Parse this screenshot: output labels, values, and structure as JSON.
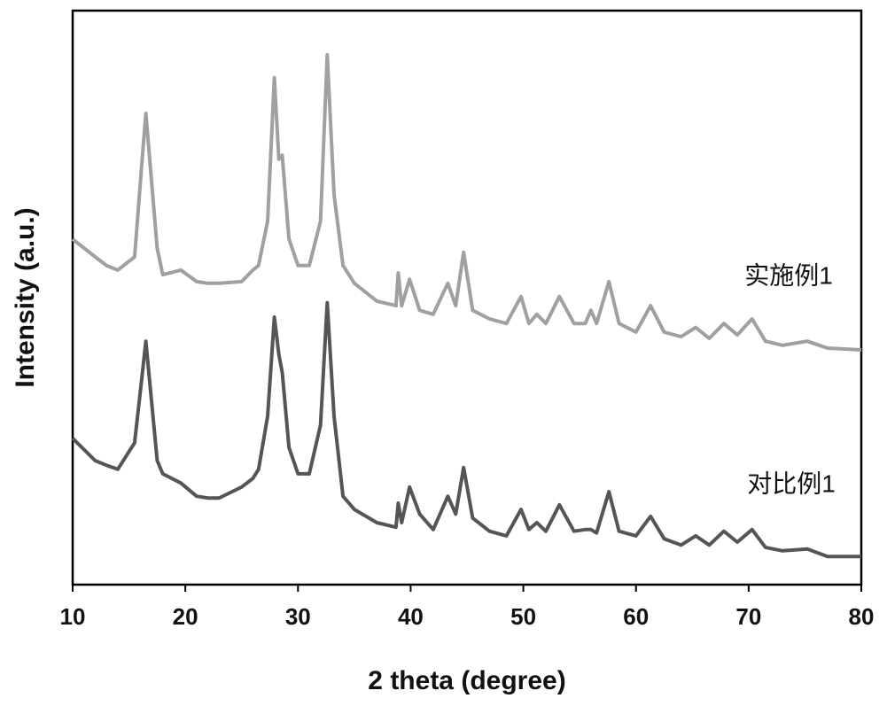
{
  "chart_data": {
    "type": "line",
    "xlabel": "2 theta (degree)",
    "ylabel": "Intensity (a.u.)",
    "x": [
      10,
      12,
      13,
      14,
      15.5,
      16.2,
      16.5,
      17.5,
      18,
      19.6,
      21,
      22,
      23,
      25,
      26,
      26.5,
      27.3,
      27.9,
      28.3,
      28.6,
      29.2,
      30,
      31,
      32,
      32.6,
      33.2,
      34,
      35,
      37,
      38.7,
      38.9,
      39.2,
      39.9,
      40.8,
      42,
      43.3,
      44,
      44.7,
      45.5,
      47,
      48.5,
      49.8,
      50.5,
      51.2,
      52,
      53.2,
      54.5,
      55.5,
      56,
      56.5,
      57.6,
      58.5,
      60,
      61.3,
      62.5,
      64,
      65.3,
      66.5,
      67.8,
      69,
      70.3,
      71.5,
      73,
      75.2,
      77,
      80
    ],
    "series": [
      {
        "name": "实施例1",
        "color": "#a0a0a0",
        "values": [
          60.2,
          57.1,
          55.6,
          54.8,
          57.1,
          74.8,
          82.1,
          58.6,
          54.0,
          54.8,
          52.8,
          52.5,
          52.5,
          52.8,
          54.8,
          55.6,
          63.3,
          88.3,
          74.1,
          74.8,
          60.2,
          55.6,
          55.6,
          63.3,
          92.3,
          67.9,
          55.6,
          52.5,
          49.4,
          48.6,
          54.3,
          48.6,
          53.2,
          47.8,
          47.1,
          52.5,
          48.6,
          57.9,
          47.8,
          46.3,
          45.5,
          50.2,
          45.5,
          47.1,
          45.5,
          50.2,
          45.5,
          45.5,
          47.8,
          45.5,
          52.8,
          45.5,
          44.0,
          48.6,
          44.0,
          43.2,
          44.8,
          42.9,
          45.5,
          43.5,
          46.3,
          42.4,
          41.7,
          42.4,
          41.2,
          40.9
        ]
      },
      {
        "name": "对比例1",
        "color": "#555555",
        "values": [
          25.5,
          21.6,
          20.8,
          20.1,
          24.7,
          37.0,
          42.4,
          21.6,
          19.3,
          17.7,
          15.4,
          15.1,
          15.1,
          17.0,
          18.5,
          20.1,
          29.3,
          46.6,
          40.1,
          37.0,
          23.9,
          19.3,
          19.3,
          27.8,
          49.1,
          29.3,
          15.4,
          13.1,
          10.8,
          10.0,
          14.2,
          10.8,
          17.0,
          12.3,
          9.6,
          15.4,
          12.3,
          20.4,
          11.6,
          9.3,
          8.5,
          13.1,
          9.6,
          10.8,
          9.3,
          13.9,
          9.3,
          9.6,
          9.6,
          9.0,
          16.2,
          9.3,
          8.5,
          11.9,
          8.0,
          6.9,
          8.5,
          6.9,
          9.3,
          7.4,
          9.6,
          6.5,
          5.9,
          6.2,
          4.9,
          4.9
        ]
      }
    ],
    "xlim": [
      10,
      80
    ],
    "xticks": [
      10,
      20,
      30,
      40,
      50,
      60,
      70,
      80
    ],
    "ylim": [
      0,
      100
    ]
  }
}
